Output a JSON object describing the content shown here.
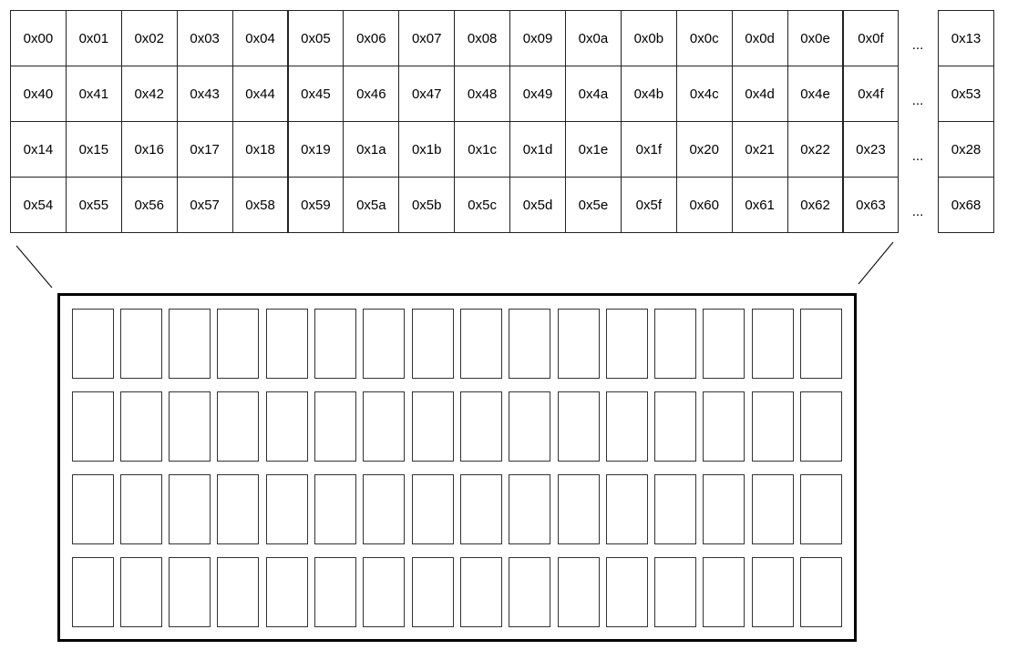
{
  "memory_map": {
    "rows": [
      {
        "cells": [
          "0x00",
          "0x01",
          "0x02",
          "0x03",
          "0x04",
          "0x05",
          "0x06",
          "0x07",
          "0x08",
          "0x09",
          "0x0a",
          "0x0b",
          "0x0c",
          "0x0d",
          "0x0e",
          "0x0f"
        ],
        "ellipsis": "...",
        "last": "0x13"
      },
      {
        "cells": [
          "0x40",
          "0x41",
          "0x42",
          "0x43",
          "0x44",
          "0x45",
          "0x46",
          "0x47",
          "0x48",
          "0x49",
          "0x4a",
          "0x4b",
          "0x4c",
          "0x4d",
          "0x4e",
          "0x4f"
        ],
        "ellipsis": "...",
        "last": "0x53"
      },
      {
        "cells": [
          "0x14",
          "0x15",
          "0x16",
          "0x17",
          "0x18",
          "0x19",
          "0x1a",
          "0x1b",
          "0x1c",
          "0x1d",
          "0x1e",
          "0x1f",
          "0x20",
          "0x21",
          "0x22",
          "0x23"
        ],
        "ellipsis": "...",
        "last": "0x28"
      },
      {
        "cells": [
          "0x54",
          "0x55",
          "0x56",
          "0x57",
          "0x58",
          "0x59",
          "0x5a",
          "0x5b",
          "0x5c",
          "0x5d",
          "0x5e",
          "0x5f",
          "0x60",
          "0x61",
          "0x62",
          "0x63"
        ],
        "ellipsis": "...",
        "last": "0x68"
      }
    ]
  },
  "display": {
    "rows": 4,
    "columns": 16
  }
}
